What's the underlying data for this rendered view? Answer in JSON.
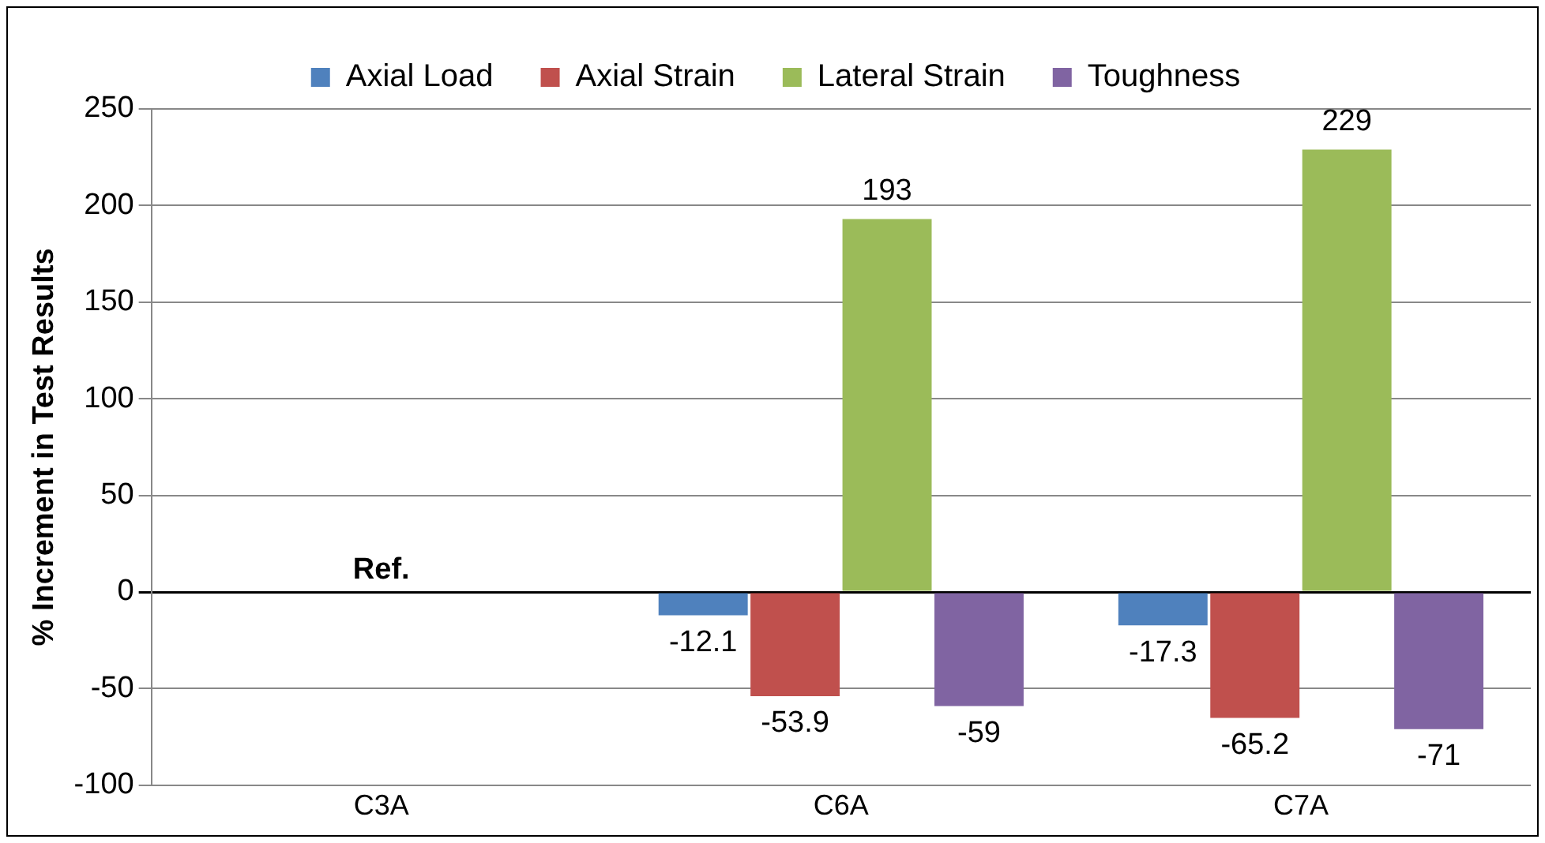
{
  "chart_data": {
    "type": "bar",
    "ylabel": "% Increment in Test Results",
    "categories": [
      "C3A",
      "C6A",
      "C7A"
    ],
    "series": [
      {
        "name": "Axial Load",
        "color": "#4f81bd",
        "values": [
          0,
          -12.1,
          -17.3
        ],
        "value_labels": [
          null,
          "-12.1",
          "-17.3"
        ]
      },
      {
        "name": "Axial Strain",
        "color": "#c0504d",
        "values": [
          0,
          -53.9,
          -65.2
        ],
        "value_labels": [
          null,
          "-53.9",
          "-65.2"
        ]
      },
      {
        "name": "Lateral Strain",
        "color": "#9bbb59",
        "values": [
          0,
          193,
          229
        ],
        "value_labels": [
          null,
          "193",
          "229"
        ]
      },
      {
        "name": "Toughness",
        "color": "#8064a2",
        "values": [
          0,
          -59,
          -71
        ],
        "value_labels": [
          null,
          "-59",
          "-71"
        ]
      }
    ],
    "annotations": [
      {
        "text": "Ref.",
        "x": "C3A",
        "y": 0
      }
    ],
    "ylim": [
      -100,
      250
    ],
    "yticks": [
      -100,
      -50,
      0,
      50,
      100,
      150,
      200,
      250
    ],
    "grid": "y",
    "legend": "top"
  }
}
